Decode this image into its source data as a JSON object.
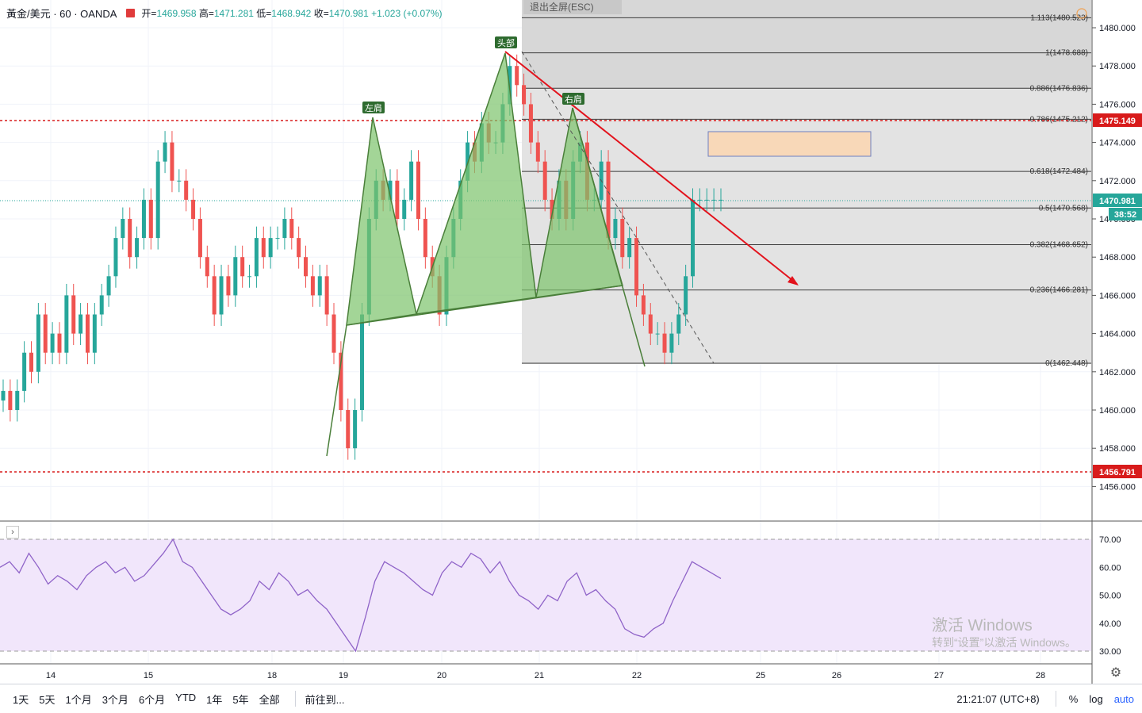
{
  "header": {
    "symbol": "黃金/美元 · 60 · OANDA",
    "open_label": "开=",
    "open_value": "1469.958",
    "high_label": "高=",
    "high_value": "1471.281",
    "low_label": "低=",
    "low_value": "1468.942",
    "close_label": "收=",
    "close_value": "1470.981",
    "change": "+1.023 (+0.07%)"
  },
  "exit_fullscreen": "退出全屏(ESC)",
  "pattern_labels": {
    "left_shoulder": "左肩",
    "head": "头部",
    "right_shoulder": "右肩"
  },
  "fib_levels": [
    {
      "ratio": "1.113",
      "price": "1480.523"
    },
    {
      "ratio": "1",
      "price": "1478.688"
    },
    {
      "ratio": "0.886",
      "price": "1476.836"
    },
    {
      "ratio": "0.786",
      "price": "1475.212"
    },
    {
      "ratio": "0.618",
      "price": "1472.484"
    },
    {
      "ratio": "0.5",
      "price": "1470.568"
    },
    {
      "ratio": "0.382",
      "price": "1468.652"
    },
    {
      "ratio": "0.236",
      "price": "1466.281"
    },
    {
      "ratio": "0",
      "price": "1462.448"
    }
  ],
  "price_axis_ticks": [
    "1480.000",
    "1478.000",
    "1476.000",
    "1474.000",
    "1472.000",
    "1470.000",
    "1468.000",
    "1466.000",
    "1464.000",
    "1462.000",
    "1460.000",
    "1458.000",
    "1456.000"
  ],
  "price_badges": {
    "resistance": "1475.149",
    "last": "1470.981",
    "countdown": "38:52",
    "support": "1456.791"
  },
  "rsi_ticks": [
    "70.00",
    "60.00",
    "50.00",
    "40.00",
    "30.00"
  ],
  "time_axis_ticks": [
    "14",
    "15",
    "18",
    "19",
    "20",
    "21",
    "22",
    "25",
    "26",
    "27",
    "28"
  ],
  "toolbar": {
    "timeframes": [
      "1天",
      "5天",
      "1个月",
      "3个月",
      "6个月",
      "YTD",
      "1年",
      "5年",
      "全部"
    ],
    "goto": "前往到...",
    "time": "21:21:07 (UTC+8)",
    "percent": "%",
    "log": "log",
    "auto": "auto"
  },
  "watermark": {
    "line1": "激活 Windows",
    "line2": "转到“设置”以激活 Windows。"
  },
  "colors": {
    "up": "#26a69a",
    "down": "#ef5350",
    "pattern_fill": "#7cc36b",
    "trend": "#e3121c",
    "fib_zone": "#e3e3e3",
    "rsi_band": "#f1e6fb",
    "rsi_line": "#8f63c8",
    "box_fill": "#f8d8b8"
  },
  "chart_data": {
    "type": "candlestick",
    "symbol": "黃金/美元",
    "timeframe": "60",
    "last_price": 1470.981,
    "ylim": [
      1454.5,
      1481.5
    ],
    "candles_close": [
      1461,
      1460,
      1461,
      1463,
      1462,
      1465,
      1463,
      1464,
      1463,
      1466,
      1464,
      1465,
      1463,
      1465,
      1466,
      1467,
      1469,
      1470,
      1468,
      1469,
      1471,
      1469,
      1473,
      1474,
      1472,
      1472,
      1471,
      1470,
      1468,
      1467,
      1465,
      1467,
      1466,
      1468,
      1467,
      1467,
      1469,
      1468,
      1469,
      1469,
      1470,
      1469,
      1468,
      1467,
      1466,
      1467,
      1465,
      1463,
      1460,
      1458,
      1460,
      1465,
      1470,
      1472,
      1471,
      1472,
      1470,
      1471,
      1473,
      1470,
      1468,
      1467,
      1465,
      1468,
      1470,
      1472,
      1474,
      1473,
      1475,
      1474,
      1474,
      1476,
      1478,
      1477,
      1476,
      1474,
      1473,
      1471,
      1470,
      1472,
      1470,
      1473,
      1474,
      1471,
      1471,
      1473,
      1469,
      1470,
      1468,
      1469,
      1466,
      1465,
      1464,
      1464,
      1463,
      1464,
      1465,
      1467,
      1471,
      1471,
      1471,
      1471,
      1471
    ],
    "rsi_values": [
      60,
      62,
      58,
      65,
      60,
      54,
      57,
      55,
      52,
      57,
      60,
      62,
      58,
      60,
      55,
      57,
      61,
      65,
      70,
      62,
      60,
      55,
      50,
      45,
      43,
      45,
      48,
      55,
      52,
      58,
      55,
      50,
      52,
      48,
      45,
      40,
      35,
      30,
      42,
      55,
      62,
      60,
      58,
      55,
      52,
      50,
      58,
      62,
      60,
      65,
      63,
      58,
      62,
      55,
      50,
      48,
      45,
      50,
      48,
      55,
      58,
      50,
      52,
      48,
      45,
      38,
      36,
      35,
      38,
      40,
      48,
      55,
      62,
      60,
      58,
      56
    ]
  }
}
